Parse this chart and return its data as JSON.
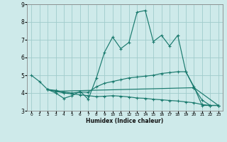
{
  "background_color": "#ceeaea",
  "grid_color": "#a0cccc",
  "line_color": "#1a7a6e",
  "xlabel": "Humidex (Indice chaleur)",
  "ylim": [
    3,
    9
  ],
  "xlim": [
    -0.5,
    23.5
  ],
  "yticks": [
    3,
    4,
    5,
    6,
    7,
    8,
    9
  ],
  "xticks": [
    0,
    1,
    2,
    3,
    4,
    5,
    6,
    7,
    8,
    9,
    10,
    11,
    12,
    13,
    14,
    15,
    16,
    17,
    18,
    19,
    20,
    21,
    22,
    23
  ],
  "lines": [
    {
      "x": [
        0,
        1,
        2,
        3,
        4,
        5,
        6,
        7,
        8,
        9,
        10,
        11,
        12,
        13,
        14,
        15,
        16,
        17,
        18,
        19,
        20,
        21,
        22,
        23
      ],
      "y": [
        5.0,
        4.65,
        4.2,
        4.0,
        3.7,
        3.85,
        4.1,
        3.65,
        4.85,
        6.3,
        7.15,
        6.5,
        6.85,
        8.55,
        8.65,
        6.9,
        7.25,
        6.65,
        7.25,
        5.2,
        4.35,
        3.3,
        3.3,
        3.3
      ]
    },
    {
      "x": [
        2,
        3,
        4,
        5,
        6,
        7,
        8,
        9,
        10,
        11,
        12,
        13,
        14,
        15,
        16,
        17,
        18,
        19,
        20,
        21,
        22,
        23
      ],
      "y": [
        4.2,
        4.15,
        4.05,
        4.0,
        4.05,
        4.05,
        4.35,
        4.55,
        4.65,
        4.75,
        4.85,
        4.9,
        4.95,
        5.0,
        5.1,
        5.15,
        5.2,
        5.2,
        4.3,
        3.6,
        3.3,
        3.3
      ]
    },
    {
      "x": [
        2,
        3,
        4,
        5,
        6,
        7,
        8,
        9,
        10,
        11,
        12,
        13,
        14,
        15,
        16,
        17,
        18,
        19,
        20,
        21,
        22,
        23
      ],
      "y": [
        4.2,
        4.1,
        4.0,
        3.95,
        3.9,
        3.85,
        3.8,
        3.82,
        3.85,
        3.82,
        3.78,
        3.72,
        3.7,
        3.65,
        3.62,
        3.58,
        3.55,
        3.5,
        3.45,
        3.35,
        3.3,
        3.3
      ]
    },
    {
      "x": [
        2,
        3,
        20,
        23
      ],
      "y": [
        4.2,
        4.1,
        4.3,
        3.3
      ]
    }
  ]
}
